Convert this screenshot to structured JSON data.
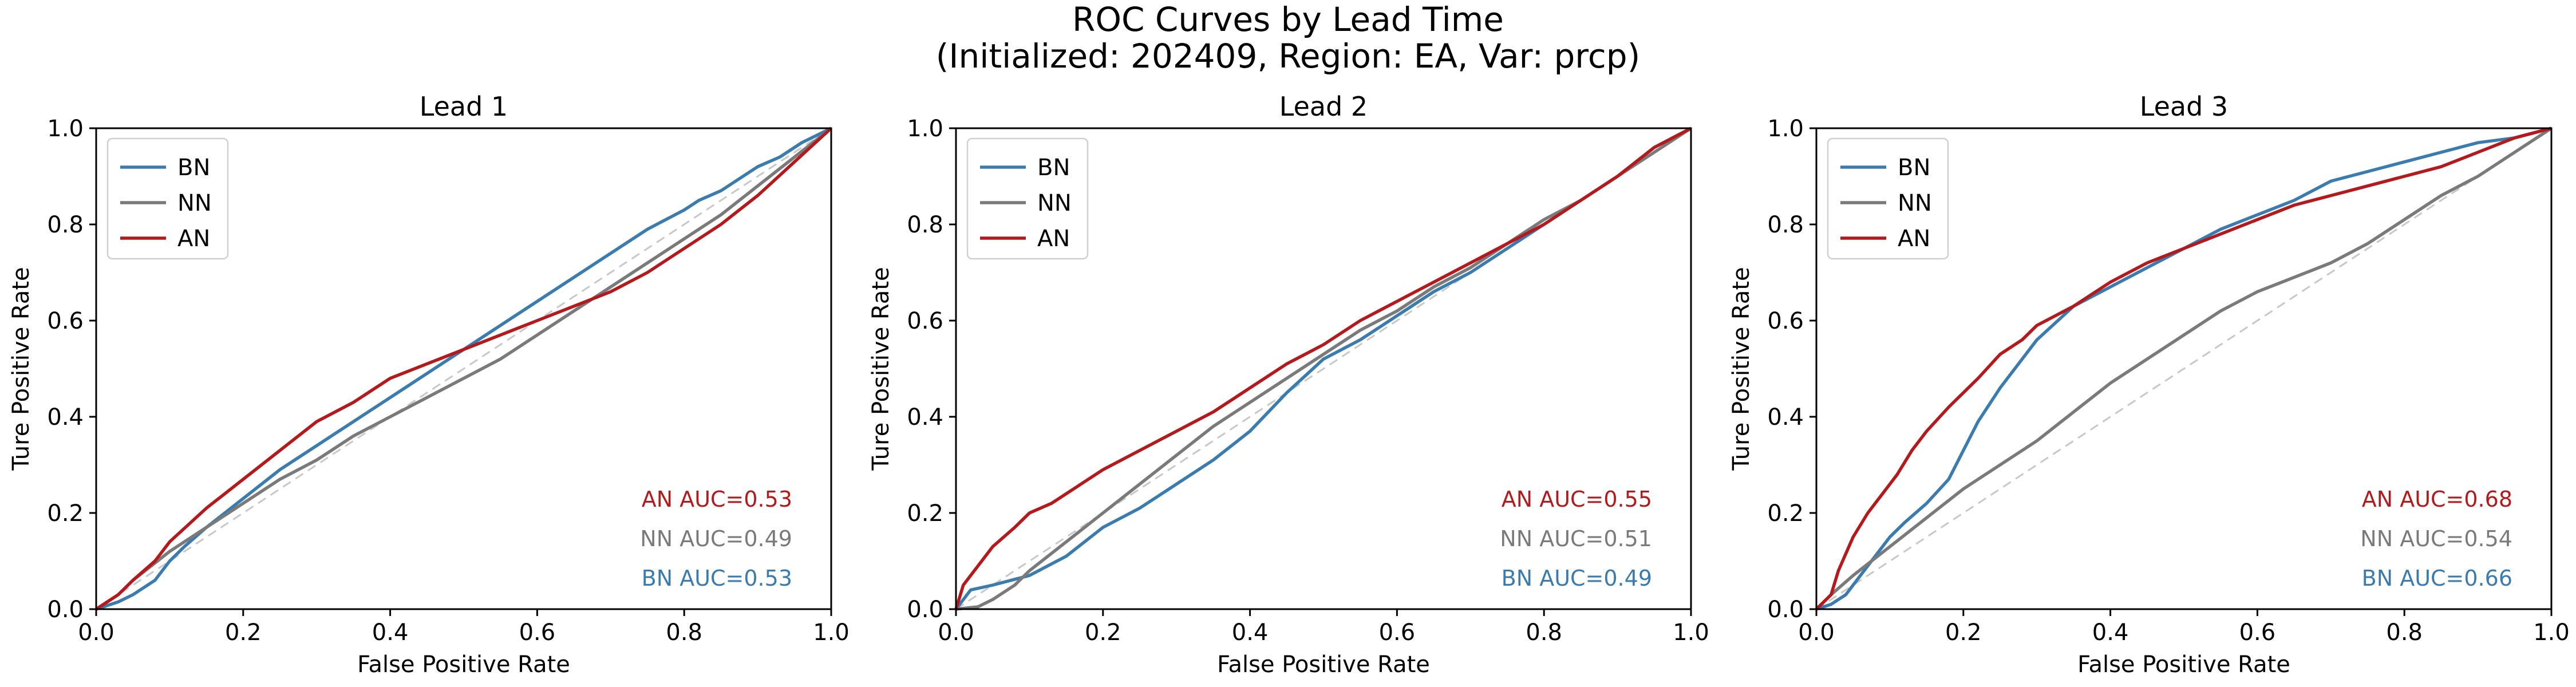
{
  "figure": {
    "title_line1": "ROC Curves by Lead Time",
    "title_line2": "(Initialized: 202409, Region: EA, Var: prcp)"
  },
  "colors": {
    "BN": "#3a7bb0",
    "NN": "#7a7a7a",
    "AN": "#b5191c",
    "diagonal": "#c8c8c8"
  },
  "chart_data": [
    {
      "type": "line",
      "title": "Lead 1",
      "xlabel": "False Positive Rate",
      "ylabel": "Ture Positive Rate",
      "xlim": [
        0,
        1
      ],
      "ylim": [
        0,
        1
      ],
      "xticks": [
        "0.0",
        "0.2",
        "0.4",
        "0.6",
        "0.8",
        "1.0"
      ],
      "yticks": [
        "0.0",
        "0.2",
        "0.4",
        "0.6",
        "0.8",
        "1.0"
      ],
      "legend": "top-left",
      "diagonal": true,
      "series": [
        {
          "name": "BN",
          "color": "#3a7bb0",
          "x": [
            0,
            0.03,
            0.05,
            0.08,
            0.1,
            0.12,
            0.15,
            0.2,
            0.25,
            0.3,
            0.35,
            0.4,
            0.45,
            0.5,
            0.55,
            0.6,
            0.65,
            0.7,
            0.75,
            0.8,
            0.82,
            0.85,
            0.88,
            0.9,
            0.93,
            0.96,
            1.0
          ],
          "y": [
            0,
            0.015,
            0.03,
            0.06,
            0.1,
            0.13,
            0.17,
            0.23,
            0.29,
            0.34,
            0.39,
            0.44,
            0.49,
            0.54,
            0.59,
            0.64,
            0.69,
            0.74,
            0.79,
            0.83,
            0.85,
            0.87,
            0.9,
            0.92,
            0.94,
            0.97,
            1.0
          ]
        },
        {
          "name": "NN",
          "color": "#7a7a7a",
          "x": [
            0,
            0.03,
            0.05,
            0.1,
            0.15,
            0.2,
            0.25,
            0.3,
            0.35,
            0.4,
            0.45,
            0.5,
            0.55,
            0.6,
            0.65,
            0.7,
            0.75,
            0.8,
            0.85,
            0.9,
            0.95,
            1.0
          ],
          "y": [
            0,
            0.03,
            0.06,
            0.12,
            0.17,
            0.22,
            0.27,
            0.31,
            0.36,
            0.4,
            0.44,
            0.48,
            0.52,
            0.57,
            0.62,
            0.67,
            0.72,
            0.77,
            0.82,
            0.88,
            0.94,
            1.0
          ]
        },
        {
          "name": "AN",
          "color": "#b5191c",
          "x": [
            0,
            0.03,
            0.05,
            0.08,
            0.1,
            0.15,
            0.2,
            0.25,
            0.3,
            0.35,
            0.4,
            0.45,
            0.5,
            0.55,
            0.6,
            0.65,
            0.7,
            0.75,
            0.8,
            0.85,
            0.9,
            0.95,
            1.0
          ],
          "y": [
            0,
            0.03,
            0.06,
            0.1,
            0.14,
            0.21,
            0.27,
            0.33,
            0.39,
            0.43,
            0.48,
            0.51,
            0.54,
            0.57,
            0.6,
            0.63,
            0.66,
            0.7,
            0.75,
            0.8,
            0.86,
            0.93,
            1.0
          ]
        }
      ],
      "annotations": [
        {
          "label": "AN",
          "text": "AN AUC=0.53",
          "color": "#b5191c"
        },
        {
          "label": "NN",
          "text": "NN AUC=0.49",
          "color": "#7a7a7a"
        },
        {
          "label": "BN",
          "text": "BN AUC=0.53",
          "color": "#3a7bb0"
        }
      ]
    },
    {
      "type": "line",
      "title": "Lead 2",
      "xlabel": "False Positive Rate",
      "ylabel": "Ture Positive Rate",
      "xlim": [
        0,
        1
      ],
      "ylim": [
        0,
        1
      ],
      "xticks": [
        "0.0",
        "0.2",
        "0.4",
        "0.6",
        "0.8",
        "1.0"
      ],
      "yticks": [
        "0.0",
        "0.2",
        "0.4",
        "0.6",
        "0.8",
        "1.0"
      ],
      "legend": "top-left",
      "diagonal": true,
      "series": [
        {
          "name": "BN",
          "color": "#3a7bb0",
          "x": [
            0,
            0.02,
            0.05,
            0.1,
            0.15,
            0.2,
            0.25,
            0.3,
            0.35,
            0.4,
            0.45,
            0.5,
            0.55,
            0.6,
            0.65,
            0.7,
            0.75,
            0.8,
            0.85,
            0.9,
            0.95,
            1.0
          ],
          "y": [
            0,
            0.04,
            0.05,
            0.07,
            0.11,
            0.17,
            0.21,
            0.26,
            0.31,
            0.37,
            0.45,
            0.52,
            0.56,
            0.61,
            0.66,
            0.7,
            0.75,
            0.8,
            0.85,
            0.9,
            0.96,
            1.0
          ]
        },
        {
          "name": "NN",
          "color": "#7a7a7a",
          "x": [
            0,
            0.03,
            0.05,
            0.08,
            0.1,
            0.15,
            0.2,
            0.25,
            0.3,
            0.35,
            0.4,
            0.45,
            0.5,
            0.55,
            0.6,
            0.65,
            0.7,
            0.75,
            0.8,
            0.85,
            0.9,
            0.95,
            1.0
          ],
          "y": [
            0,
            0.005,
            0.02,
            0.05,
            0.08,
            0.14,
            0.2,
            0.26,
            0.32,
            0.38,
            0.43,
            0.48,
            0.53,
            0.58,
            0.62,
            0.67,
            0.71,
            0.76,
            0.81,
            0.85,
            0.9,
            0.95,
            1.0
          ]
        },
        {
          "name": "AN",
          "color": "#b5191c",
          "x": [
            0,
            0.01,
            0.03,
            0.05,
            0.08,
            0.1,
            0.13,
            0.15,
            0.2,
            0.25,
            0.3,
            0.35,
            0.4,
            0.45,
            0.5,
            0.55,
            0.6,
            0.65,
            0.7,
            0.75,
            0.8,
            0.85,
            0.9,
            0.95,
            1.0
          ],
          "y": [
            0,
            0.05,
            0.09,
            0.13,
            0.17,
            0.2,
            0.22,
            0.24,
            0.29,
            0.33,
            0.37,
            0.41,
            0.46,
            0.51,
            0.55,
            0.6,
            0.64,
            0.68,
            0.72,
            0.76,
            0.8,
            0.85,
            0.9,
            0.96,
            1.0
          ]
        }
      ],
      "annotations": [
        {
          "label": "AN",
          "text": "AN AUC=0.55",
          "color": "#b5191c"
        },
        {
          "label": "NN",
          "text": "NN AUC=0.51",
          "color": "#7a7a7a"
        },
        {
          "label": "BN",
          "text": "BN AUC=0.49",
          "color": "#3a7bb0"
        }
      ]
    },
    {
      "type": "line",
      "title": "Lead 3",
      "xlabel": "False Positive Rate",
      "ylabel": "Ture Positive Rate",
      "xlim": [
        0,
        1
      ],
      "ylim": [
        0,
        1
      ],
      "xticks": [
        "0.0",
        "0.2",
        "0.4",
        "0.6",
        "0.8",
        "1.0"
      ],
      "yticks": [
        "0.0",
        "0.2",
        "0.4",
        "0.6",
        "0.8",
        "1.0"
      ],
      "legend": "top-left",
      "diagonal": true,
      "series": [
        {
          "name": "BN",
          "color": "#3a7bb0",
          "x": [
            0,
            0.02,
            0.04,
            0.06,
            0.08,
            0.1,
            0.12,
            0.15,
            0.18,
            0.2,
            0.22,
            0.25,
            0.28,
            0.3,
            0.35,
            0.4,
            0.45,
            0.5,
            0.55,
            0.6,
            0.65,
            0.7,
            0.75,
            0.8,
            0.85,
            0.9,
            0.95,
            1.0
          ],
          "y": [
            0,
            0.01,
            0.03,
            0.07,
            0.11,
            0.15,
            0.18,
            0.22,
            0.27,
            0.33,
            0.39,
            0.46,
            0.52,
            0.56,
            0.63,
            0.67,
            0.71,
            0.75,
            0.79,
            0.82,
            0.85,
            0.89,
            0.91,
            0.93,
            0.95,
            0.97,
            0.98,
            1.0
          ]
        },
        {
          "name": "NN",
          "color": "#7a7a7a",
          "x": [
            0,
            0.02,
            0.05,
            0.1,
            0.15,
            0.2,
            0.25,
            0.3,
            0.35,
            0.4,
            0.45,
            0.5,
            0.55,
            0.6,
            0.65,
            0.7,
            0.75,
            0.8,
            0.85,
            0.9,
            0.95,
            1.0
          ],
          "y": [
            0,
            0.03,
            0.07,
            0.13,
            0.19,
            0.25,
            0.3,
            0.35,
            0.41,
            0.47,
            0.52,
            0.57,
            0.62,
            0.66,
            0.69,
            0.72,
            0.76,
            0.81,
            0.86,
            0.9,
            0.95,
            1.0
          ]
        },
        {
          "name": "AN",
          "color": "#b5191c",
          "x": [
            0,
            0.02,
            0.03,
            0.05,
            0.07,
            0.09,
            0.11,
            0.13,
            0.15,
            0.18,
            0.2,
            0.22,
            0.25,
            0.28,
            0.3,
            0.35,
            0.4,
            0.45,
            0.5,
            0.55,
            0.6,
            0.65,
            0.7,
            0.75,
            0.8,
            0.85,
            0.9,
            0.95,
            1.0
          ],
          "y": [
            0,
            0.03,
            0.08,
            0.15,
            0.2,
            0.24,
            0.28,
            0.33,
            0.37,
            0.42,
            0.45,
            0.48,
            0.53,
            0.56,
            0.59,
            0.63,
            0.68,
            0.72,
            0.75,
            0.78,
            0.81,
            0.84,
            0.86,
            0.88,
            0.9,
            0.92,
            0.95,
            0.98,
            1.0
          ]
        }
      ],
      "annotations": [
        {
          "label": "AN",
          "text": "AN AUC=0.68",
          "color": "#b5191c"
        },
        {
          "label": "NN",
          "text": "NN AUC=0.54",
          "color": "#7a7a7a"
        },
        {
          "label": "BN",
          "text": "BN AUC=0.66",
          "color": "#3a7bb0"
        }
      ]
    }
  ]
}
